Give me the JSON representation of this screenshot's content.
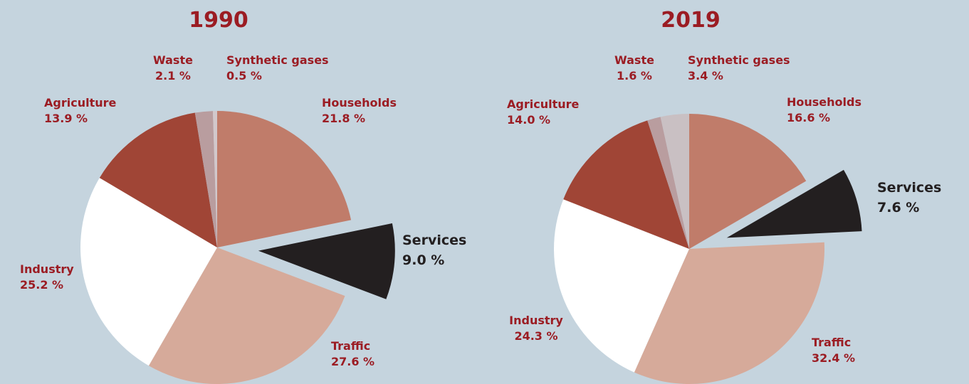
{
  "chart_data": [
    {
      "type": "pie",
      "title": "1990",
      "categories": [
        "Households",
        "Services",
        "Traffic",
        "Industry",
        "Agriculture",
        "Waste",
        "Synthetic gases"
      ],
      "values": [
        21.8,
        9.0,
        27.6,
        25.2,
        13.9,
        2.1,
        0.5
      ],
      "value_labels": [
        "21.8 %",
        "9.0 %",
        "27.6 %",
        "25.2 %",
        "13.9 %",
        "2.1 %",
        "0.5 %"
      ],
      "colors": [
        "#c07c6a",
        "#231f20",
        "#d6aa9a",
        "#ffffff",
        "#a04536",
        "#b99d9f",
        "#d2c8cb"
      ]
    },
    {
      "type": "pie",
      "title": "2019",
      "categories": [
        "Households",
        "Services",
        "Traffic",
        "Industry",
        "Agriculture",
        "Waste",
        "Synthetic gases"
      ],
      "values": [
        16.6,
        7.6,
        32.4,
        24.3,
        14.0,
        1.6,
        3.4
      ],
      "value_labels": [
        "16.6 %",
        "7.6 %",
        "32.4 %",
        "24.3 %",
        "14.0 %",
        "1.6 %",
        "3.4 %"
      ],
      "colors": [
        "#c07c6a",
        "#231f20",
        "#d6aa9a",
        "#ffffff",
        "#a04536",
        "#b99d9f",
        "#c9c0c3"
      ]
    }
  ]
}
